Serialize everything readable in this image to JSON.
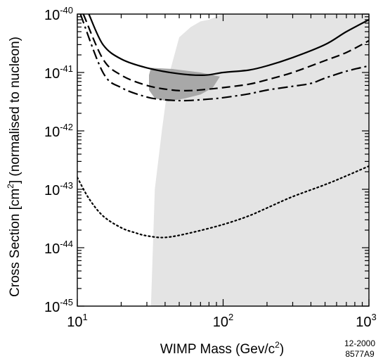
{
  "chart_data": {
    "type": "line",
    "title": "",
    "xlabel": "WIMP Mass  (Gev/c2)",
    "ylabel": "Cross Section  [cm2] (normalised to nucleon)",
    "x_scale": "log",
    "y_scale": "log",
    "xlim": [
      10,
      1000
    ],
    "ylim": [
      1e-45,
      1e-40
    ],
    "x_ticks": [
      {
        "value": 10,
        "base": "10",
        "exp": "1"
      },
      {
        "value": 100,
        "base": "10",
        "exp": "2"
      },
      {
        "value": 1000,
        "base": "10",
        "exp": "3"
      }
    ],
    "y_ticks": [
      {
        "value": 1e-40,
        "base": "10",
        "exp": "-40"
      },
      {
        "value": 1e-41,
        "base": "10",
        "exp": "-41"
      },
      {
        "value": 1e-42,
        "base": "10",
        "exp": "-42"
      },
      {
        "value": 1e-43,
        "base": "10",
        "exp": "-43"
      },
      {
        "value": 1e-44,
        "base": "10",
        "exp": "-44"
      },
      {
        "value": 1e-45,
        "base": "10",
        "exp": "-45"
      }
    ],
    "series": [
      {
        "style": "solid",
        "color": "#000000",
        "points": [
          [
            12,
            1e-40
          ],
          [
            15,
            3e-41
          ],
          [
            20,
            1.7e-41
          ],
          [
            30,
            1.2e-41
          ],
          [
            50,
            9.5e-42
          ],
          [
            75,
            9e-42
          ],
          [
            100,
            1e-41
          ],
          [
            150,
            1.1e-41
          ],
          [
            200,
            1.3e-41
          ],
          [
            300,
            1.8e-41
          ],
          [
            500,
            3e-41
          ],
          [
            700,
            5e-41
          ],
          [
            1000,
            8e-41
          ]
        ]
      },
      {
        "style": "dashed",
        "color": "#000000",
        "points": [
          [
            11,
            1e-40
          ],
          [
            15,
            1.7e-41
          ],
          [
            20,
            9e-42
          ],
          [
            30,
            6e-42
          ],
          [
            45,
            5e-42
          ],
          [
            60,
            4.9e-42
          ],
          [
            80,
            5.2e-42
          ],
          [
            100,
            5.5e-42
          ],
          [
            150,
            6.3e-42
          ],
          [
            200,
            7.5e-42
          ],
          [
            300,
            1e-41
          ],
          [
            500,
            1.6e-41
          ],
          [
            700,
            2.2e-41
          ],
          [
            1000,
            3.5e-41
          ]
        ]
      },
      {
        "style": "dash-dot",
        "color": "#000000",
        "points": [
          [
            10.5,
            1e-40
          ],
          [
            15,
            1e-41
          ],
          [
            20,
            5.5e-42
          ],
          [
            30,
            3.8e-42
          ],
          [
            40,
            3.4e-42
          ],
          [
            55,
            3.3e-42
          ],
          [
            80,
            3.5e-42
          ],
          [
            100,
            3.7e-42
          ],
          [
            150,
            4.3e-42
          ],
          [
            200,
            5e-42
          ],
          [
            300,
            5.8e-42
          ],
          [
            400,
            6.5e-42
          ],
          [
            500,
            8e-42
          ],
          [
            700,
            1.05e-41
          ],
          [
            1000,
            1.3e-41
          ]
        ]
      },
      {
        "style": "dotted",
        "color": "#000000",
        "points": [
          [
            10,
            1.6e-43
          ],
          [
            12,
            7e-44
          ],
          [
            15,
            3.5e-44
          ],
          [
            20,
            2.2e-44
          ],
          [
            25,
            1.8e-44
          ],
          [
            30,
            1.6e-44
          ],
          [
            40,
            1.5e-44
          ],
          [
            60,
            1.8e-44
          ],
          [
            100,
            2.5e-44
          ],
          [
            150,
            3.5e-44
          ],
          [
            200,
            4.8e-44
          ],
          [
            300,
            7.5e-44
          ],
          [
            500,
            1.2e-43
          ],
          [
            700,
            1.7e-43
          ],
          [
            1000,
            2.5e-43
          ]
        ]
      }
    ],
    "regions": [
      {
        "name": "light-excluded-region",
        "color": "#e4e4e4",
        "points": [
          [
            32,
            1e-45
          ],
          [
            34,
            1e-43
          ],
          [
            38,
            1e-42
          ],
          [
            43,
            1e-41
          ],
          [
            50,
            4e-41
          ],
          [
            60,
            6e-41
          ],
          [
            70,
            7.5e-41
          ],
          [
            80,
            8e-41
          ],
          [
            90,
            9e-41
          ],
          [
            100,
            1e-40
          ],
          [
            1000,
            1e-40
          ],
          [
            1000,
            1e-45
          ]
        ]
      },
      {
        "name": "dark-allowed-region",
        "color": "#a8a8a8",
        "points": [
          [
            32,
            1.2e-41
          ],
          [
            45,
            1.15e-41
          ],
          [
            70,
            1e-41
          ],
          [
            95,
            8.5e-42
          ],
          [
            85,
            5.5e-42
          ],
          [
            70,
            4.2e-42
          ],
          [
            55,
            3.6e-42
          ],
          [
            42,
            3.2e-42
          ],
          [
            34,
            3.6e-42
          ],
          [
            31,
            5e-42
          ],
          [
            31,
            9e-42
          ]
        ]
      }
    ]
  },
  "annotation": {
    "line1": "12-2000",
    "line2": "8577A9"
  }
}
